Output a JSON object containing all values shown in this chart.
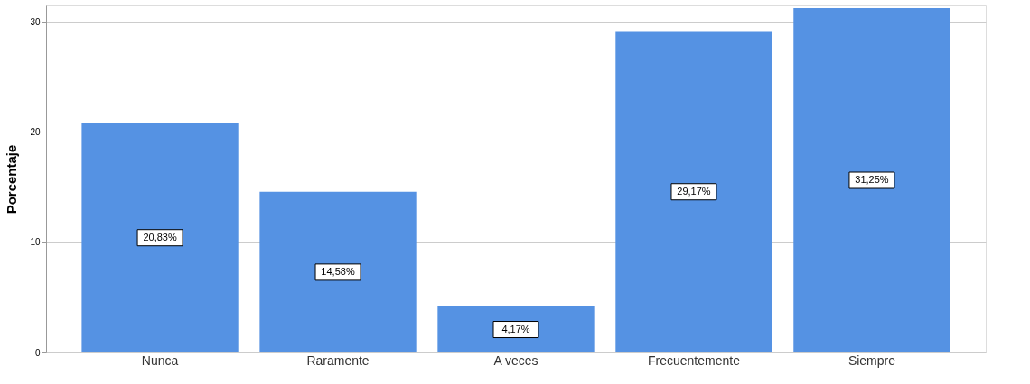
{
  "chart_data": {
    "type": "bar",
    "ylabel": "Porcentaje",
    "categories": [
      "Nunca",
      "Raramente",
      "A veces",
      "Frecuentemente",
      "Siempre"
    ],
    "values": [
      20.83,
      14.58,
      4.17,
      29.17,
      31.25
    ],
    "value_labels": [
      "20,83%",
      "14,58%",
      "4,17%",
      "29,17%",
      "31,25%"
    ],
    "color": "#5592e3",
    "ylim": [
      0,
      31.5
    ],
    "yticks": [
      0,
      10,
      20,
      30
    ],
    "grid": "y"
  }
}
